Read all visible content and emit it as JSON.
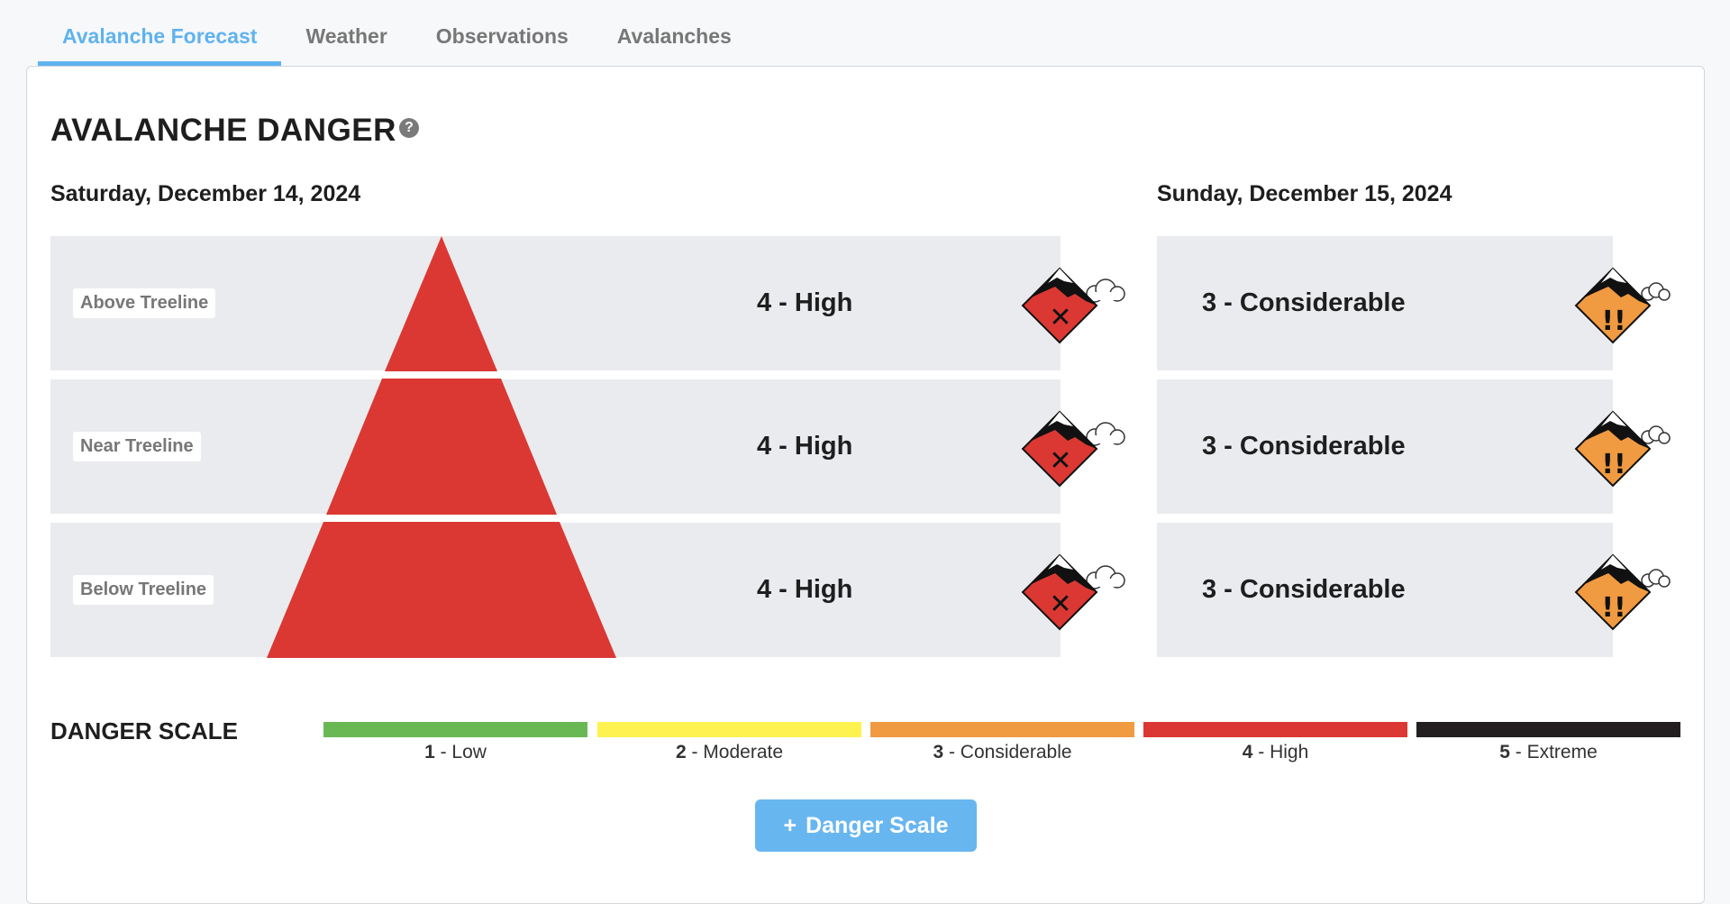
{
  "tabs": [
    {
      "label": "Avalanche Forecast",
      "active": true
    },
    {
      "label": "Weather",
      "active": false
    },
    {
      "label": "Observations",
      "active": false
    },
    {
      "label": "Avalanches",
      "active": false
    }
  ],
  "heading": "AVALANCHE DANGER",
  "help_icon": "question-circle-icon",
  "days": [
    {
      "date": "Saturday, December 14, 2024",
      "rows": [
        {
          "elevation": "Above Treeline",
          "rating": "4 - High",
          "level": 4
        },
        {
          "elevation": "Near Treeline",
          "rating": "4 - High",
          "level": 4
        },
        {
          "elevation": "Below Treeline",
          "rating": "4 - High",
          "level": 4
        }
      ]
    },
    {
      "date": "Sunday, December 15, 2024",
      "rows": [
        {
          "rating": "3 - Considerable",
          "level": 3
        },
        {
          "rating": "3 - Considerable",
          "level": 3
        },
        {
          "rating": "3 - Considerable",
          "level": 3
        }
      ]
    }
  ],
  "danger_scale": {
    "title": "DANGER SCALE",
    "levels": [
      {
        "num": "1",
        "name": " - Low",
        "color": "#6ab854"
      },
      {
        "num": "2",
        "name": " - Moderate",
        "color": "#fef250"
      },
      {
        "num": "3",
        "name": " - Considerable",
        "color": "#f09a41"
      },
      {
        "num": "4",
        "name": " - High",
        "color": "#db3833"
      },
      {
        "num": "5",
        "name": " - Extreme",
        "color": "#231f20"
      }
    ]
  },
  "colors": {
    "high": "#db3833",
    "considerable": "#f09a41",
    "accent": "#5fb3ee"
  },
  "button": {
    "icon": "+",
    "label": "Danger Scale"
  }
}
